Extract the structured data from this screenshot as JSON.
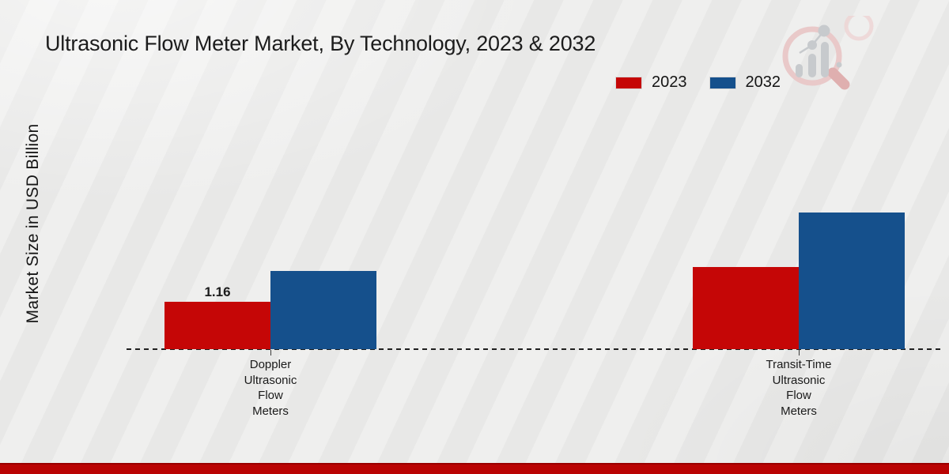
{
  "page": {
    "background_color": "#e8e8e7",
    "bottom_band_color": "#ba0303"
  },
  "logo": {
    "ring_color": "#e9c9c9",
    "handle_color": "#dfafaf",
    "accent_ring_color": "#edd3d3",
    "bars_color": "#c7cacd"
  },
  "chart_data": {
    "type": "bar",
    "title": "Ultrasonic Flow Meter Market, By Technology, 2023 & 2032",
    "ylabel": "Market Size in USD Billion",
    "xlabel": "",
    "categories": [
      "Doppler Ultrasonic Flow Meters",
      "Transit-Time Ultrasonic Flow Meters"
    ],
    "categories_lines": [
      [
        "Doppler",
        "Ultrasonic",
        "Flow",
        "Meters"
      ],
      [
        "Transit-Time",
        "Ultrasonic",
        "Flow",
        "Meters"
      ]
    ],
    "series": [
      {
        "name": "2023",
        "color": "#c50606",
        "values": [
          1.16,
          2.0
        ]
      },
      {
        "name": "2032",
        "color": "#15508c",
        "values": [
          1.9,
          3.32
        ]
      }
    ],
    "shown_value_labels": [
      {
        "category_index": 0,
        "series_index": 0,
        "label": "1.16"
      }
    ],
    "ylim": [
      0,
      3.5
    ],
    "grid": false,
    "baseline_style": "dashed",
    "legend_position": "top-right"
  }
}
